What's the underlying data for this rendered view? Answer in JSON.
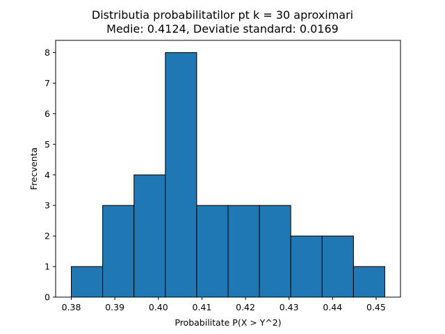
{
  "chart_data": {
    "type": "bar",
    "title": "Distributia probabilitatilor pt k = 30 aproximari",
    "subtitle": "Medie: 0.4124, Deviatie standard: 0.0169",
    "xlabel": "Probabilitate P(X > Y^2)",
    "ylabel": "Frecventa",
    "bins": [
      {
        "start": 0.38,
        "end": 0.3872,
        "count": 1
      },
      {
        "start": 0.3872,
        "end": 0.3944,
        "count": 3
      },
      {
        "start": 0.3944,
        "end": 0.4016,
        "count": 4
      },
      {
        "start": 0.4016,
        "end": 0.4088,
        "count": 8
      },
      {
        "start": 0.4088,
        "end": 0.416,
        "count": 3
      },
      {
        "start": 0.416,
        "end": 0.4232,
        "count": 3
      },
      {
        "start": 0.4232,
        "end": 0.4304,
        "count": 3
      },
      {
        "start": 0.4304,
        "end": 0.4376,
        "count": 2
      },
      {
        "start": 0.4376,
        "end": 0.4448,
        "count": 2
      },
      {
        "start": 0.4448,
        "end": 0.452,
        "count": 1
      }
    ],
    "xlim": [
      0.3764,
      0.4556
    ],
    "ylim": [
      0,
      8.4
    ],
    "xticks": [
      0.38,
      0.39,
      0.4,
      0.41,
      0.42,
      0.43,
      0.44,
      0.45
    ],
    "xtick_labels": [
      "0.38",
      "0.39",
      "0.40",
      "0.41",
      "0.42",
      "0.43",
      "0.44",
      "0.45"
    ],
    "yticks": [
      0,
      1,
      2,
      3,
      4,
      5,
      6,
      7,
      8
    ],
    "ytick_labels": [
      "0",
      "1",
      "2",
      "3",
      "4",
      "5",
      "6",
      "7",
      "8"
    ],
    "bar_color": "#1f77b4",
    "edge_color": "#000000",
    "grid": false,
    "legend": "none"
  }
}
